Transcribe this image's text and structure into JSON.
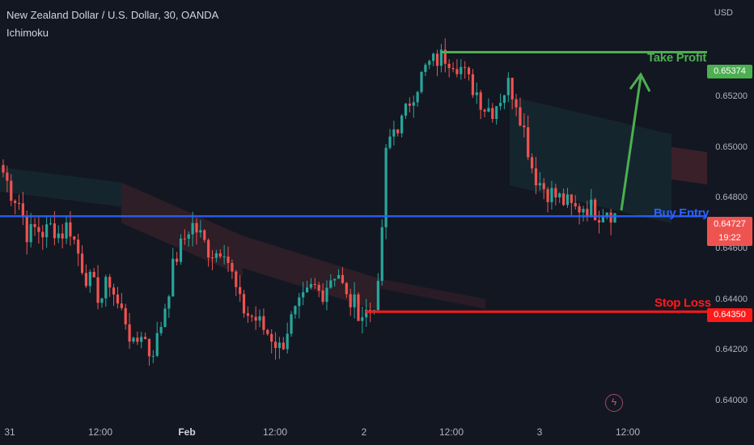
{
  "header": {
    "title": "New Zealand Dollar / U.S. Dollar, 30, OANDA",
    "indicator": "Ichimoku",
    "currency": "USD"
  },
  "colors": {
    "background": "#131722",
    "up": "#26a69a",
    "down": "#ef5350",
    "take_profit": "#4caf50",
    "buy_entry": "#2962ff",
    "stop_loss": "#ff1a1a"
  },
  "annotations": {
    "take_profit_label": "Take Profit",
    "take_profit_price": "0.65374",
    "buy_entry_label": "Buy Entry",
    "buy_entry_price": "0.64727",
    "buy_entry_countdown": "19:22",
    "stop_loss_label": "Stop Loss",
    "stop_loss_price": "0.64350"
  },
  "icons": {
    "replay": "lightning-icon"
  },
  "chart_data": {
    "type": "candlestick",
    "ylim": [
      0.6392,
      0.6558
    ],
    "yticks": [
      "0.65200",
      "0.65000",
      "0.64800",
      "0.64600",
      "0.64400",
      "0.64200",
      "0.64000"
    ],
    "xticks": [
      {
        "label": "31",
        "bold": false
      },
      {
        "label": "12:00",
        "bold": false
      },
      {
        "label": "Feb",
        "bold": true
      },
      {
        "label": "12:00",
        "bold": false
      },
      {
        "label": "2",
        "bold": false
      },
      {
        "label": "12:00",
        "bold": false
      },
      {
        "label": "3",
        "bold": false
      },
      {
        "label": "12:00",
        "bold": false
      }
    ],
    "levels": {
      "take_profit": 0.65374,
      "buy_entry": 0.64727,
      "stop_loss": 0.6435
    },
    "close_path": [
      0.649,
      0.6482,
      0.6478,
      0.6465,
      0.6468,
      0.6466,
      0.6469,
      0.6465,
      0.647,
      0.646,
      0.645,
      0.6445,
      0.644,
      0.6448,
      0.6438,
      0.6432,
      0.642,
      0.6428,
      0.6418,
      0.6425,
      0.644,
      0.6455,
      0.6462,
      0.647,
      0.6466,
      0.646,
      0.6458,
      0.6462,
      0.645,
      0.6438,
      0.6434,
      0.6432,
      0.6428,
      0.6425,
      0.642,
      0.643,
      0.6435,
      0.644,
      0.6445,
      0.6442,
      0.6448,
      0.6452,
      0.644,
      0.6438,
      0.6434,
      0.6436,
      0.6443,
      0.65,
      0.6508,
      0.651,
      0.652,
      0.6526,
      0.6532,
      0.6534,
      0.6536,
      0.6535,
      0.6532,
      0.6526,
      0.6522,
      0.6516,
      0.6515,
      0.652,
      0.6525,
      0.6518,
      0.6505,
      0.649,
      0.6485,
      0.6482,
      0.648,
      0.6478,
      0.6475,
      0.6477,
      0.6476,
      0.6474,
      0.6476,
      0.6473
    ]
  }
}
